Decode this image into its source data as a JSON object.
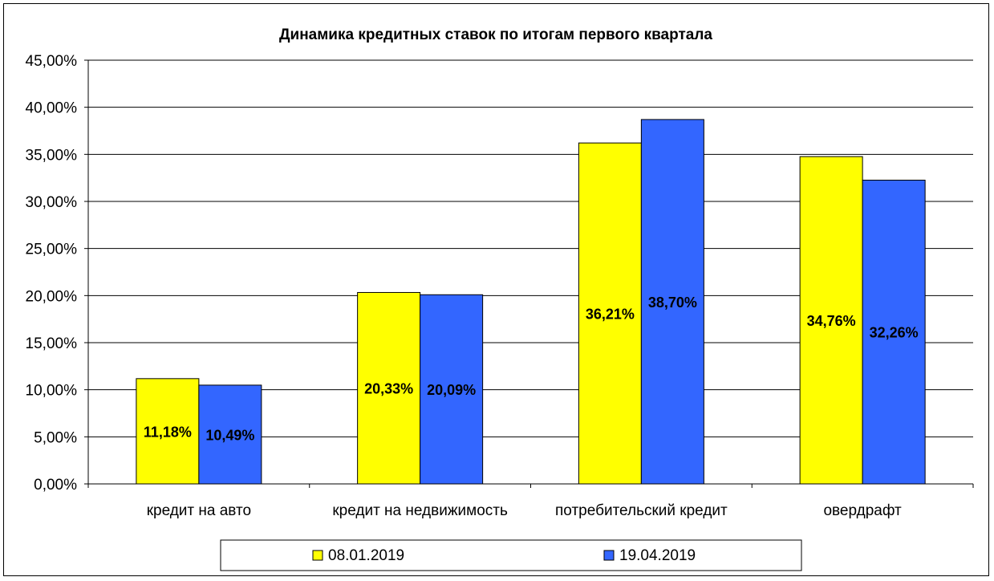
{
  "chart_data": {
    "type": "bar",
    "title": "Динамика кредитных ставок по итогам первого квартала",
    "xlabel": "",
    "ylabel": "",
    "categories": [
      "кредит на авто",
      "кредит на недвижимость",
      "потребительский кредит",
      "овердрафт"
    ],
    "series": [
      {
        "name": "08.01.2019",
        "color": "#ffff00",
        "values": [
          11.18,
          20.33,
          36.21,
          34.76
        ],
        "labels": [
          "11,18%",
          "20,33%",
          "36,21%",
          "34,76%"
        ]
      },
      {
        "name": "19.04.2019",
        "color": "#3366ff",
        "values": [
          10.49,
          20.09,
          38.7,
          32.26
        ],
        "labels": [
          "10,49%",
          "20,09%",
          "38,70%",
          "32,26%"
        ]
      }
    ],
    "ylim": [
      0,
      45
    ],
    "yticks": [
      "0,00%",
      "5,00%",
      "10,00%",
      "15,00%",
      "20,00%",
      "25,00%",
      "30,00%",
      "35,00%",
      "40,00%",
      "45,00%"
    ],
    "grid": true,
    "legend_position": "bottom"
  }
}
